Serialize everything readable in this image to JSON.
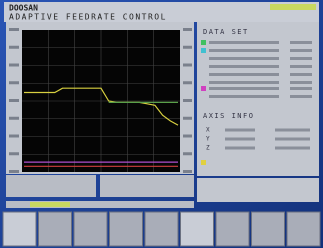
{
  "header": {
    "brand": "DOOSAN",
    "title": "ADAPTIVE FEEDRATE CONTROL"
  },
  "data_set": {
    "title": "DATA SET"
  },
  "axis_info": {
    "title": "AXIS INFO",
    "axes": [
      "X",
      "Y",
      "Z"
    ]
  },
  "graph": {
    "type": "line",
    "ylim": [
      0,
      100
    ],
    "series": [
      {
        "color": "#d8d040",
        "values": [
          56,
          56,
          56,
          56,
          56,
          59,
          59,
          59,
          59,
          59,
          59,
          50,
          49,
          49,
          49,
          49,
          48,
          47,
          40,
          36,
          33
        ]
      },
      {
        "color": "#5aa04a",
        "values": [
          null,
          null,
          null,
          null,
          null,
          null,
          null,
          null,
          null,
          null,
          null,
          49,
          49,
          49,
          49,
          49,
          49,
          49,
          49,
          49,
          49
        ]
      },
      {
        "color": "#b050d0",
        "values": [
          7,
          7,
          7,
          7,
          7,
          7,
          7,
          7,
          7,
          7,
          7,
          7,
          7,
          7,
          7,
          7,
          7,
          7,
          7,
          7,
          7
        ]
      },
      {
        "color": "#d04040",
        "values": [
          4,
          4,
          4,
          4,
          4,
          4,
          4,
          4,
          4,
          4,
          4,
          4,
          4,
          4,
          4,
          4,
          4,
          4,
          4,
          4,
          4
        ]
      }
    ]
  }
}
